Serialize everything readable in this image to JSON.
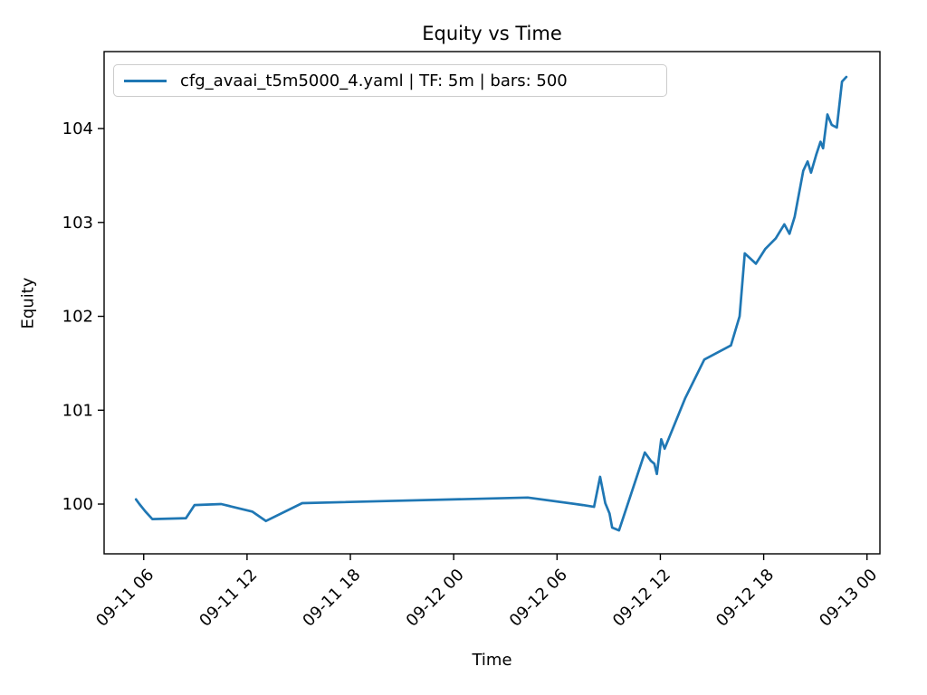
{
  "figure": {
    "background": "#ffffff"
  },
  "chart_data": {
    "type": "line",
    "title": "Equity vs Time",
    "xlabel": "Time",
    "ylabel": "Equity",
    "grid": false,
    "legend": {
      "position": "upper-left",
      "entries": [
        {
          "label": "cfg_avaai_t5m5000_4.yaml | TF: 5m | bars: 500",
          "color": "#1f77b4"
        }
      ]
    },
    "x_unit": "hours after 09-11 00:00",
    "xlim": [
      3.7,
      48.75
    ],
    "ylim": [
      99.47,
      104.82
    ],
    "x_ticks": [
      {
        "t": 6,
        "label": "09-11 06"
      },
      {
        "t": 12,
        "label": "09-11 12"
      },
      {
        "t": 18,
        "label": "09-11 18"
      },
      {
        "t": 24,
        "label": "09-12 00"
      },
      {
        "t": 30,
        "label": "09-12 06"
      },
      {
        "t": 36,
        "label": "09-12 12"
      },
      {
        "t": 42,
        "label": "09-12 18"
      },
      {
        "t": 48,
        "label": "09-13 00"
      }
    ],
    "y_ticks": [
      100,
      101,
      102,
      103,
      104
    ],
    "series": [
      {
        "name": "cfg_avaai_t5m5000_4.yaml | TF: 5m | bars: 500",
        "color": "#1f77b4",
        "linewidth": 2.7,
        "points": [
          [
            5.55,
            100.05
          ],
          [
            5.75,
            100.0
          ],
          [
            6.1,
            99.92
          ],
          [
            6.5,
            99.84
          ],
          [
            8.45,
            99.85
          ],
          [
            8.95,
            99.99
          ],
          [
            10.5,
            100.0
          ],
          [
            12.3,
            99.92
          ],
          [
            13.1,
            99.82
          ],
          [
            15.2,
            100.01
          ],
          [
            28.3,
            100.07
          ],
          [
            31.5,
            99.99
          ],
          [
            32.15,
            99.97
          ],
          [
            32.5,
            100.29
          ],
          [
            32.8,
            100.01
          ],
          [
            33.05,
            99.9
          ],
          [
            33.2,
            99.75
          ],
          [
            33.6,
            99.72
          ],
          [
            35.1,
            100.55
          ],
          [
            35.45,
            100.46
          ],
          [
            35.65,
            100.43
          ],
          [
            35.8,
            100.32
          ],
          [
            36.05,
            100.69
          ],
          [
            36.25,
            100.59
          ],
          [
            37.45,
            101.13
          ],
          [
            38.55,
            101.54
          ],
          [
            40.1,
            101.69
          ],
          [
            40.6,
            102.0
          ],
          [
            40.9,
            102.67
          ],
          [
            41.55,
            102.56
          ],
          [
            42.1,
            102.72
          ],
          [
            42.7,
            102.83
          ],
          [
            43.2,
            102.98
          ],
          [
            43.5,
            102.88
          ],
          [
            43.8,
            103.06
          ],
          [
            44.3,
            103.55
          ],
          [
            44.55,
            103.65
          ],
          [
            44.75,
            103.53
          ],
          [
            45.05,
            103.72
          ],
          [
            45.3,
            103.86
          ],
          [
            45.45,
            103.79
          ],
          [
            45.7,
            104.15
          ],
          [
            45.95,
            104.04
          ],
          [
            46.25,
            104.01
          ],
          [
            46.55,
            104.5
          ],
          [
            46.8,
            104.55
          ]
        ]
      }
    ],
    "axis_color": "#000000",
    "tick_font_px": 18,
    "title_font_px": 21
  }
}
